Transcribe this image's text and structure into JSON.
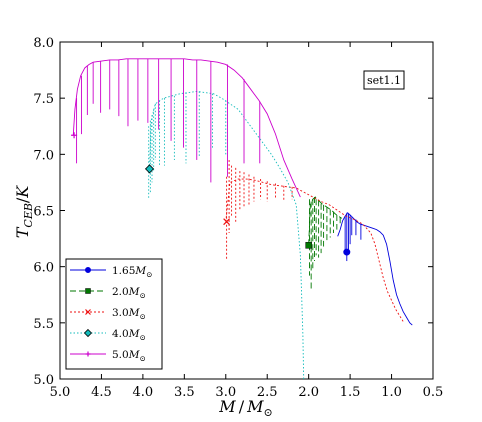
{
  "chart_data": {
    "type": "line",
    "title": "",
    "xlabel": "M / M_⊙",
    "ylabel": "T_CEB / K",
    "xlim": [
      5.0,
      0.5
    ],
    "ylim": [
      5.0,
      8.0
    ],
    "x_inverted": true,
    "x_ticks": [
      "5.0",
      "4.5",
      "4.0",
      "3.5",
      "3.0",
      "2.5",
      "2.0",
      "1.5",
      "1.0",
      "0.5"
    ],
    "y_ticks": [
      "5.0",
      "5.5",
      "6.0",
      "6.5",
      "7.0",
      "7.5",
      "8.0"
    ],
    "grid": false,
    "legend_position": "lower-left",
    "annotation": "set1.1",
    "series": [
      {
        "name": "1.65M⊙",
        "label_main": "1.65",
        "label_unit": "M",
        "color": "#0000dd",
        "dash": "",
        "marker": "circle",
        "marker_point": [
          1.54,
          6.13
        ],
        "points": [
          [
            1.65,
            6.27
          ],
          [
            1.62,
            6.33
          ],
          [
            1.59,
            6.41
          ],
          [
            1.56,
            6.45
          ],
          [
            1.53,
            6.48
          ],
          [
            1.5,
            6.46
          ],
          [
            1.46,
            6.43
          ],
          [
            1.42,
            6.4
          ],
          [
            1.38,
            6.38
          ],
          [
            1.34,
            6.37
          ],
          [
            1.3,
            6.36
          ],
          [
            1.26,
            6.35
          ],
          [
            1.22,
            6.34
          ],
          [
            1.18,
            6.33
          ],
          [
            1.14,
            6.31
          ],
          [
            1.1,
            6.28
          ],
          [
            1.06,
            6.2
          ],
          [
            1.02,
            6.05
          ],
          [
            0.98,
            5.88
          ],
          [
            0.94,
            5.75
          ],
          [
            0.9,
            5.67
          ],
          [
            0.86,
            5.6
          ],
          [
            0.82,
            5.55
          ],
          [
            0.78,
            5.5
          ],
          [
            0.75,
            5.48
          ]
        ],
        "spikes": [
          [
            1.56,
            6.45,
            6.12
          ],
          [
            1.54,
            6.48,
            6.05
          ],
          [
            1.52,
            6.47,
            6.14
          ],
          [
            1.5,
            6.46,
            6.2
          ],
          [
            1.48,
            6.44,
            6.28
          ],
          [
            1.43,
            6.42,
            6.28
          ],
          [
            1.37,
            6.38,
            6.24
          ]
        ]
      },
      {
        "name": "2.0M⊙",
        "label_main": "2.0",
        "label_unit": "M",
        "color": "#007700",
        "dash": "6,3",
        "marker": "square",
        "marker_point": [
          2.0,
          6.19
        ],
        "points": [
          [
            2.0,
            6.19
          ],
          [
            1.98,
            6.55
          ],
          [
            1.95,
            6.6
          ],
          [
            1.92,
            6.62
          ],
          [
            1.88,
            6.59
          ],
          [
            1.84,
            6.56
          ],
          [
            1.8,
            6.54
          ],
          [
            1.76,
            6.52
          ],
          [
            1.72,
            6.5
          ],
          [
            1.68,
            6.47
          ],
          [
            1.64,
            6.45
          ],
          [
            1.6,
            6.43
          ]
        ],
        "spikes": [
          [
            1.99,
            6.6,
            5.92
          ],
          [
            1.97,
            6.58,
            5.8
          ],
          [
            1.95,
            6.6,
            5.98
          ],
          [
            1.93,
            6.62,
            6.05
          ],
          [
            1.91,
            6.6,
            6.1
          ],
          [
            1.88,
            6.59,
            6.08
          ],
          [
            1.85,
            6.56,
            6.12
          ],
          [
            1.82,
            6.55,
            6.18
          ],
          [
            1.78,
            6.53,
            6.22
          ],
          [
            1.74,
            6.51,
            6.26
          ],
          [
            1.7,
            6.49,
            6.3
          ],
          [
            1.66,
            6.46,
            6.33
          ],
          [
            1.62,
            6.44,
            6.36
          ]
        ]
      },
      {
        "name": "3.0M⊙",
        "label_main": "3.0",
        "label_unit": "M",
        "color": "#ee1111",
        "dash": "2,2",
        "marker": "x",
        "marker_point": [
          2.99,
          6.4
        ],
        "points": [
          [
            3.0,
            6.4
          ],
          [
            2.95,
            6.75
          ],
          [
            2.85,
            6.78
          ],
          [
            2.75,
            6.78
          ],
          [
            2.65,
            6.77
          ],
          [
            2.55,
            6.75
          ],
          [
            2.45,
            6.73
          ],
          [
            2.35,
            6.72
          ],
          [
            2.25,
            6.71
          ],
          [
            2.15,
            6.7
          ],
          [
            2.05,
            6.66
          ],
          [
            1.95,
            6.62
          ],
          [
            1.85,
            6.58
          ],
          [
            1.75,
            6.55
          ],
          [
            1.65,
            6.5
          ],
          [
            1.55,
            6.45
          ],
          [
            1.45,
            6.42
          ],
          [
            1.4,
            6.4
          ],
          [
            1.35,
            6.38
          ],
          [
            1.3,
            6.34
          ],
          [
            1.25,
            6.3
          ],
          [
            1.2,
            6.2
          ],
          [
            1.15,
            6.05
          ],
          [
            1.1,
            5.9
          ],
          [
            1.05,
            5.78
          ],
          [
            1.0,
            5.7
          ],
          [
            0.95,
            5.62
          ],
          [
            0.9,
            5.56
          ],
          [
            0.85,
            5.5
          ]
        ],
        "spikes": [
          [
            2.99,
            6.8,
            6.07
          ],
          [
            2.96,
            6.95,
            6.3
          ],
          [
            2.93,
            6.9,
            6.45
          ],
          [
            2.88,
            6.88,
            6.4
          ],
          [
            2.83,
            6.85,
            6.5
          ],
          [
            2.78,
            6.84,
            6.52
          ],
          [
            2.72,
            6.82,
            6.55
          ],
          [
            2.66,
            6.8,
            6.58
          ],
          [
            2.58,
            6.78,
            6.6
          ],
          [
            2.5,
            6.76,
            6.58
          ],
          [
            2.4,
            6.74,
            6.6
          ],
          [
            2.3,
            6.72,
            6.58
          ],
          [
            2.2,
            6.71,
            6.6
          ]
        ]
      },
      {
        "name": "4.0M⊙",
        "label_main": "4.0",
        "label_unit": "M",
        "color": "#11bbbb",
        "dash": "1.5,2",
        "marker": "diamond",
        "marker_point": [
          3.92,
          6.87
        ],
        "points": [
          [
            3.92,
            6.87
          ],
          [
            3.9,
            7.3
          ],
          [
            3.85,
            7.45
          ],
          [
            3.75,
            7.5
          ],
          [
            3.65,
            7.52
          ],
          [
            3.55,
            7.54
          ],
          [
            3.45,
            7.55
          ],
          [
            3.35,
            7.56
          ],
          [
            3.25,
            7.55
          ],
          [
            3.15,
            7.54
          ],
          [
            3.05,
            7.5
          ],
          [
            2.95,
            7.45
          ],
          [
            2.85,
            7.4
          ],
          [
            2.75,
            7.3
          ],
          [
            2.65,
            7.2
          ],
          [
            2.55,
            7.1
          ],
          [
            2.45,
            7.0
          ],
          [
            2.35,
            6.88
          ],
          [
            2.25,
            6.75
          ],
          [
            2.15,
            6.55
          ],
          [
            2.1,
            6.1
          ],
          [
            2.07,
            5.4
          ],
          [
            2.06,
            5.0
          ]
        ],
        "spikes": [
          [
            3.93,
            7.25,
            6.6
          ],
          [
            3.91,
            7.3,
            6.65
          ],
          [
            3.89,
            7.35,
            6.75
          ],
          [
            3.87,
            7.4,
            6.85
          ],
          [
            3.85,
            7.45,
            6.95
          ],
          [
            3.8,
            7.48,
            6.9
          ],
          [
            3.74,
            7.5,
            6.9
          ],
          [
            3.62,
            7.52,
            6.95
          ],
          [
            3.48,
            7.55,
            6.92
          ],
          [
            3.32,
            7.56,
            6.98
          ],
          [
            3.16,
            7.54,
            7.05
          ],
          [
            3.0,
            7.48,
            7.0
          ]
        ]
      },
      {
        "name": "5.0M⊙",
        "label_main": "5.0",
        "label_unit": "M",
        "color": "#cc00cc",
        "dash": "",
        "marker": "plus",
        "marker_point": [
          4.83,
          7.17
        ],
        "points": [
          [
            4.84,
            7.17
          ],
          [
            4.82,
            7.4
          ],
          [
            4.79,
            7.58
          ],
          [
            4.75,
            7.7
          ],
          [
            4.7,
            7.77
          ],
          [
            4.65,
            7.8
          ],
          [
            4.6,
            7.82
          ],
          [
            4.5,
            7.83
          ],
          [
            4.4,
            7.84
          ],
          [
            4.3,
            7.84
          ],
          [
            4.2,
            7.85
          ],
          [
            4.1,
            7.85
          ],
          [
            4.0,
            7.85
          ],
          [
            3.9,
            7.85
          ],
          [
            3.8,
            7.85
          ],
          [
            3.7,
            7.85
          ],
          [
            3.6,
            7.85
          ],
          [
            3.5,
            7.85
          ],
          [
            3.4,
            7.84
          ],
          [
            3.3,
            7.84
          ],
          [
            3.2,
            7.83
          ],
          [
            3.1,
            7.82
          ],
          [
            3.0,
            7.8
          ],
          [
            2.9,
            7.75
          ],
          [
            2.8,
            7.68
          ],
          [
            2.7,
            7.58
          ],
          [
            2.6,
            7.48
          ],
          [
            2.5,
            7.36
          ],
          [
            2.4,
            7.18
          ],
          [
            2.3,
            6.95
          ],
          [
            2.2,
            6.78
          ],
          [
            2.15,
            6.7
          ],
          [
            2.1,
            6.62
          ]
        ],
        "spikes": [
          [
            4.8,
            7.5,
            6.92
          ],
          [
            4.74,
            7.7,
            7.18
          ],
          [
            4.67,
            7.79,
            7.35
          ],
          [
            4.6,
            7.82,
            7.45
          ],
          [
            4.51,
            7.83,
            7.37
          ],
          [
            4.4,
            7.84,
            7.4
          ],
          [
            4.29,
            7.84,
            7.34
          ],
          [
            4.18,
            7.85,
            7.25
          ],
          [
            4.06,
            7.85,
            7.3
          ],
          [
            3.94,
            7.85,
            7.28
          ],
          [
            3.81,
            7.85,
            7.22
          ],
          [
            3.66,
            7.85,
            7.12
          ],
          [
            3.51,
            7.85,
            7.06
          ],
          [
            3.35,
            7.84,
            6.95
          ],
          [
            3.18,
            7.83,
            6.75
          ],
          [
            2.98,
            7.8,
            6.8
          ],
          [
            2.78,
            7.67,
            6.92
          ],
          [
            2.59,
            7.47,
            6.92
          ]
        ]
      }
    ]
  }
}
